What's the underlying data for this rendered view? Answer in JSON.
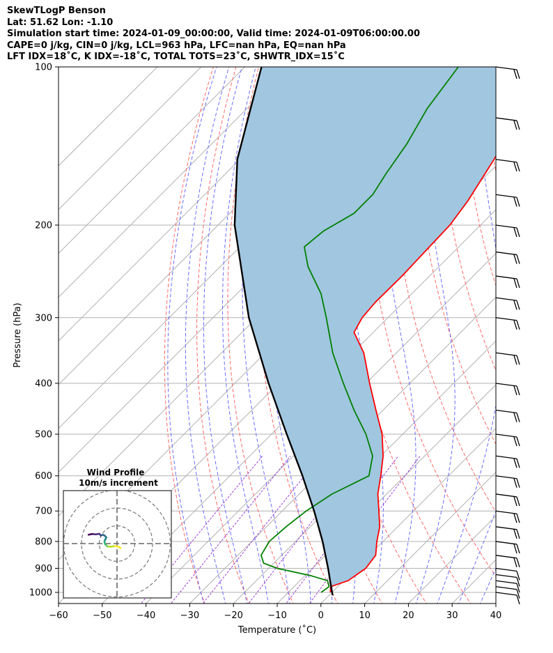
{
  "header": {
    "line1": "SkewTLogP Benson",
    "line2": "Lat: 51.62   Lon: -1.10",
    "line3": "Simulation start time: 2024-01-09_00:00:00, Valid time: 2024-01-09T06:00:00.00",
    "line4": "CAPE=0 j/kg, CIN=0 j/kg, LCL=963 hPa, LFC=nan hPa, EQ=nan hPa",
    "line5": "LFT IDX=18˚C, K IDX=-18˚C, TOTAL TOTS=23˚C, SHWTR_IDX=15˚C"
  },
  "chart_data": {
    "type": "line",
    "xlabel": "Temperature (˚C)",
    "ylabel": "Pressure (hPa)",
    "xlim": [
      -60,
      40
    ],
    "ylim": [
      1050,
      100
    ],
    "yscale": "log",
    "skew": true,
    "grid": true,
    "x_ticks": [
      -60,
      -50,
      -40,
      -30,
      -20,
      -10,
      0,
      10,
      20,
      30,
      40
    ],
    "y_ticks": [
      100,
      200,
      300,
      400,
      500,
      600,
      700,
      800,
      900,
      1000
    ],
    "series": [
      {
        "key": "temperature",
        "color": "#ff0000",
        "points": [
          [
            1000,
            -0.4
          ],
          [
            975,
            -1.6
          ],
          [
            950,
            1.0
          ],
          [
            900,
            2.2
          ],
          [
            850,
            1.5
          ],
          [
            800,
            -1.4
          ],
          [
            750,
            -4.1
          ],
          [
            700,
            -7.9
          ],
          [
            650,
            -12.0
          ],
          [
            600,
            -15.5
          ],
          [
            550,
            -19.5
          ],
          [
            500,
            -24.7
          ],
          [
            450,
            -31.6
          ],
          [
            400,
            -39.2
          ],
          [
            350,
            -47.5
          ],
          [
            320,
            -54.4
          ],
          [
            300,
            -55.9
          ],
          [
            280,
            -56.4
          ],
          [
            250,
            -56.3
          ],
          [
            220,
            -56.7
          ],
          [
            200,
            -57.0
          ],
          [
            180,
            -58.4
          ],
          [
            150,
            -61.9
          ],
          [
            130,
            -64.9
          ],
          [
            115,
            -67.6
          ],
          [
            100,
            -69.6
          ]
        ]
      },
      {
        "key": "dewpoint",
        "color": "#008000",
        "points": [
          [
            1000,
            -2.5
          ],
          [
            975,
            -2.0
          ],
          [
            950,
            -3.7
          ],
          [
            930,
            -8.5
          ],
          [
            900,
            -18.0
          ],
          [
            880,
            -22.3
          ],
          [
            850,
            -24.7
          ],
          [
            800,
            -26.0
          ],
          [
            750,
            -25.5
          ],
          [
            700,
            -24.5
          ],
          [
            650,
            -22.5
          ],
          [
            600,
            -18.2
          ],
          [
            550,
            -21.9
          ],
          [
            500,
            -28.4
          ],
          [
            450,
            -36.6
          ],
          [
            400,
            -45.2
          ],
          [
            350,
            -54.6
          ],
          [
            300,
            -64.1
          ],
          [
            270,
            -70.8
          ],
          [
            240,
            -79.9
          ],
          [
            220,
            -85.3
          ],
          [
            205,
            -84.5
          ],
          [
            190,
            -81.6
          ],
          [
            175,
            -81.6
          ],
          [
            160,
            -83.3
          ],
          [
            140,
            -85.4
          ],
          [
            120,
            -88.8
          ],
          [
            100,
            -91.2
          ]
        ]
      },
      {
        "key": "parcel",
        "color": "#000000",
        "points": [
          [
            1013,
            0.8
          ],
          [
            963,
            -2.3
          ],
          [
            900,
            -6.4
          ],
          [
            800,
            -13.8
          ],
          [
            700,
            -22.7
          ],
          [
            600,
            -33.4
          ],
          [
            500,
            -46.5
          ],
          [
            400,
            -62.3
          ],
          [
            300,
            -81.8
          ],
          [
            200,
            -106.2
          ],
          [
            150,
            -120.6
          ],
          [
            100,
            -136.2
          ]
        ]
      }
    ],
    "wind_profile": {
      "title": "Wind Profile",
      "subtitle": "10m/s increment",
      "rings_ms": [
        10,
        20,
        30
      ],
      "hodograph_uv": [
        [
          2,
          -2.5
        ],
        [
          0,
          -1.5
        ],
        [
          -2,
          -1.5
        ],
        [
          -4,
          -1.8
        ],
        [
          -5.5,
          -1.5
        ],
        [
          -6.5,
          -0.5
        ],
        [
          -7,
          0.5
        ],
        [
          -7,
          1.5
        ],
        [
          -6.5,
          2.5
        ],
        [
          -6,
          3.5
        ],
        [
          -7,
          4.5
        ],
        [
          -8,
          5
        ],
        [
          -9,
          4.5
        ],
        [
          -10,
          5.5
        ],
        [
          -12,
          5.2
        ],
        [
          -14,
          5.4
        ],
        [
          -16,
          5
        ]
      ]
    }
  },
  "colors": {
    "temperature": "#ff0000",
    "dewpoint": "#008000",
    "parcel": "#000000",
    "cape_fill": "#a1c6e0",
    "dry_adiabat": "#ff6666",
    "moist_adiabat": "#6a6aff",
    "mixing_ratio": "#9a3ad0",
    "grid": "#b0b0b0"
  }
}
